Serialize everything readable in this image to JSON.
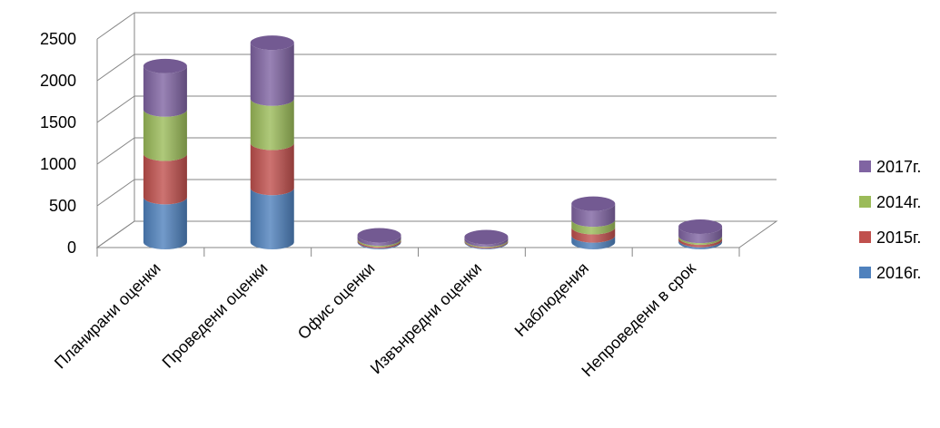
{
  "chart_data": {
    "type": "bar",
    "stacked": true,
    "three_d": true,
    "title": "",
    "xlabel": "",
    "ylabel": "",
    "ylim": [
      0,
      2500
    ],
    "yticks": [
      0,
      500,
      1000,
      1500,
      2000,
      2500
    ],
    "grid": true,
    "legend_position": "right",
    "categories": [
      "Планирани оценки",
      "Проведени оценки",
      "Офис оценки",
      "Извънредни оценки",
      "Наблюдения",
      "Непроведени в срок"
    ],
    "series": [
      {
        "name": "2016г.",
        "color": "#4F81BD",
        "values": [
          540,
          650,
          12,
          10,
          80,
          25
        ]
      },
      {
        "name": "2015г.",
        "color": "#C0504D",
        "values": [
          520,
          540,
          15,
          10,
          100,
          30
        ]
      },
      {
        "name": "2014г.",
        "color": "#9BBB59",
        "values": [
          530,
          530,
          15,
          10,
          90,
          20
        ]
      },
      {
        "name": "2017г.",
        "color": "#8064A2",
        "values": [
          520,
          670,
          40,
          30,
          190,
          110
        ]
      }
    ],
    "legend_order": [
      "2017г.",
      "2014г.",
      "2015г.",
      "2016г."
    ]
  }
}
